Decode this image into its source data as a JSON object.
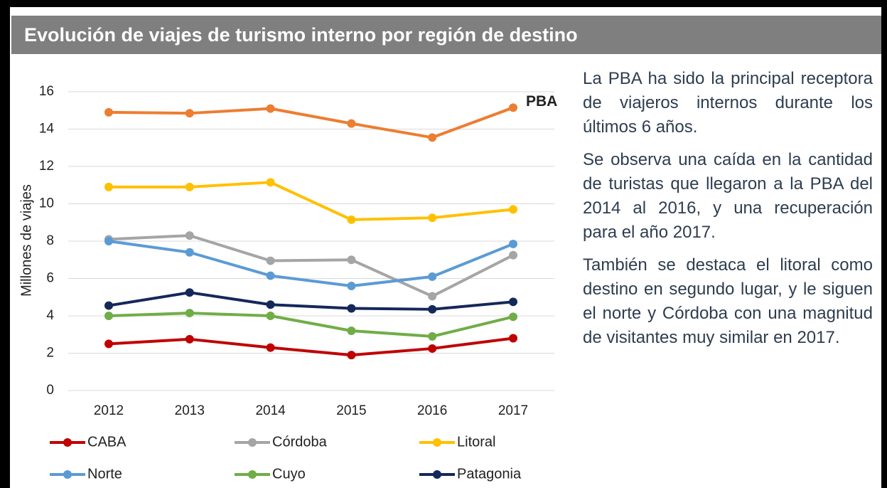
{
  "header": {
    "title": "Evolución de viajes de turismo interno por región de destino"
  },
  "chart_data": {
    "type": "line",
    "ylabel": "Millones de viajes",
    "categories": [
      "2012",
      "2013",
      "2014",
      "2015",
      "2016",
      "2017"
    ],
    "ylim": [
      0,
      16
    ],
    "yticks": [
      0,
      2,
      4,
      6,
      8,
      10,
      12,
      14,
      16
    ],
    "grid": true,
    "legend": "bottom",
    "series": [
      {
        "name": "CABA",
        "color": "#c00000",
        "values": [
          2.5,
          2.75,
          2.3,
          1.9,
          2.25,
          2.8
        ]
      },
      {
        "name": "Córdoba",
        "color": "#a5a5a5",
        "values": [
          8.1,
          8.3,
          6.95,
          7.0,
          5.05,
          7.25
        ]
      },
      {
        "name": "Litoral",
        "color": "#ffc000",
        "values": [
          10.9,
          10.9,
          11.15,
          9.15,
          9.25,
          9.7
        ]
      },
      {
        "name": "Norte",
        "color": "#5b9bd5",
        "values": [
          8.0,
          7.4,
          6.15,
          5.6,
          6.1,
          7.85
        ]
      },
      {
        "name": "Cuyo",
        "color": "#70ad47",
        "values": [
          4.0,
          4.15,
          4.0,
          3.2,
          2.9,
          3.95
        ]
      },
      {
        "name": "Patagonia",
        "color": "#14285a",
        "values": [
          4.55,
          5.25,
          4.6,
          4.4,
          4.35,
          4.75
        ]
      },
      {
        "name": "PBA",
        "color": "#ed7d31",
        "label_at_end": true,
        "values": [
          14.9,
          14.85,
          15.1,
          14.3,
          13.55,
          15.15
        ]
      }
    ]
  },
  "texts": [
    "La PBA ha sido la principal receptora de viajeros internos durante los últimos 6 años.",
    "Se observa una caída en la cantidad de turistas que llegaron a la PBA del 2014 al 2016, y una recuperación para el año 2017.",
    "También se destaca el litoral como destino en segundo lugar, y le siguen el norte y Córdoba con una magnitud de visitantes muy similar en 2017."
  ]
}
